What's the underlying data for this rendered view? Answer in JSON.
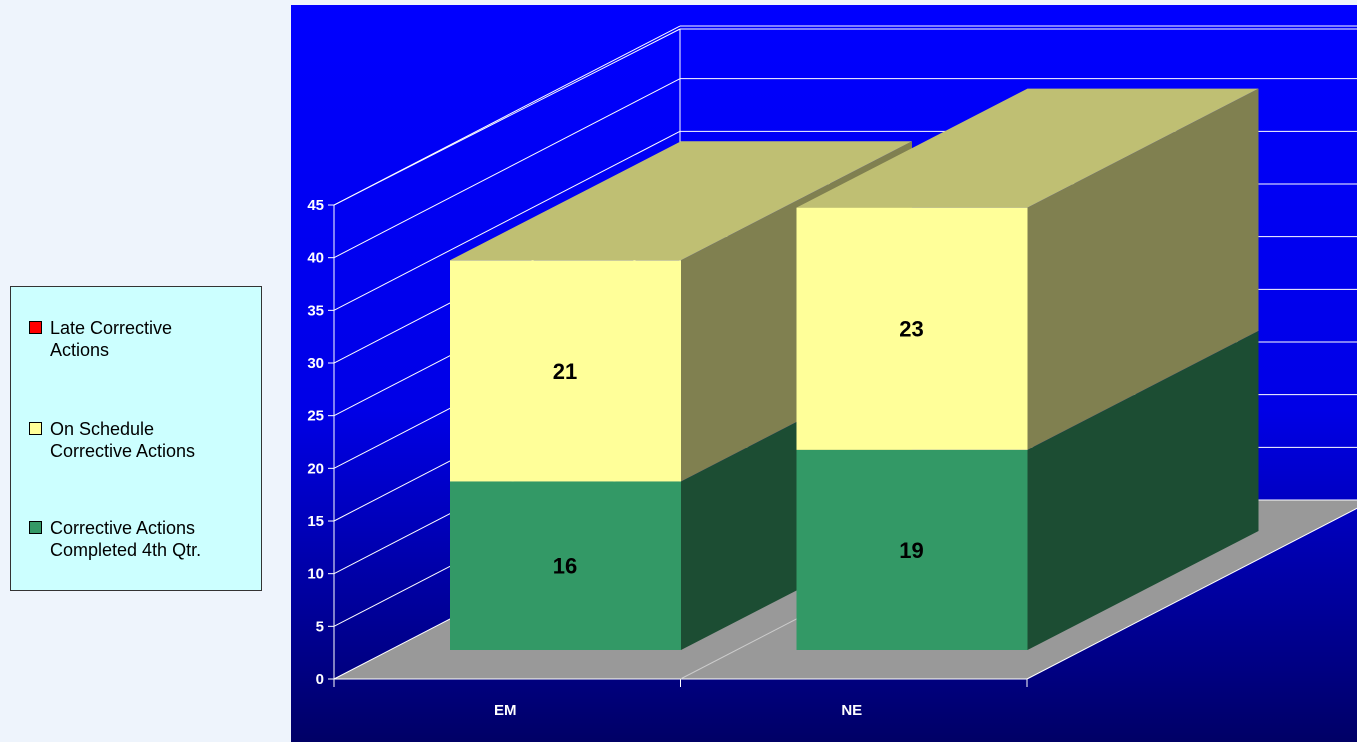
{
  "chart_data": {
    "type": "bar",
    "stacked": true,
    "three_d": true,
    "categories": [
      "EM",
      "NE"
    ],
    "series": [
      {
        "name": "Corrective Actions Completed 4th Qtr.",
        "values": [
          16,
          19
        ],
        "color": "#339966",
        "side_color": "#1c4d33"
      },
      {
        "name": "On Schedule Corrective Actions",
        "values": [
          21,
          23
        ],
        "color": "#ffff99",
        "side_color": "#808050",
        "top_color": "#bfbf73"
      },
      {
        "name": "Late Corrective Actions",
        "values": [
          0,
          0
        ],
        "color": "#ff0000"
      }
    ],
    "data_labels": [
      {
        "category": "EM",
        "series": "Corrective Actions Completed 4th Qtr.",
        "text": "16"
      },
      {
        "category": "EM",
        "series": "On Schedule Corrective Actions",
        "text": "21"
      },
      {
        "category": "NE",
        "series": "Corrective Actions Completed 4th Qtr.",
        "text": "19"
      },
      {
        "category": "NE",
        "series": "On Schedule Corrective Actions",
        "text": "23"
      }
    ],
    "yticks": [
      "0",
      "5",
      "10",
      "15",
      "20",
      "25",
      "30",
      "35",
      "40",
      "45"
    ],
    "ylim": [
      0,
      45
    ],
    "grid": true,
    "legend_position": "left",
    "plot_background": "#0000ff",
    "floor_color": "#999999"
  },
  "legend": {
    "items": [
      {
        "label": "Late Corrective\nActions",
        "color": "#ff0000"
      },
      {
        "label": "On Schedule\nCorrective Actions",
        "color": "#ffff99"
      },
      {
        "label": "Corrective Actions\nCompleted 4th Qtr.",
        "color": "#339966"
      }
    ]
  }
}
